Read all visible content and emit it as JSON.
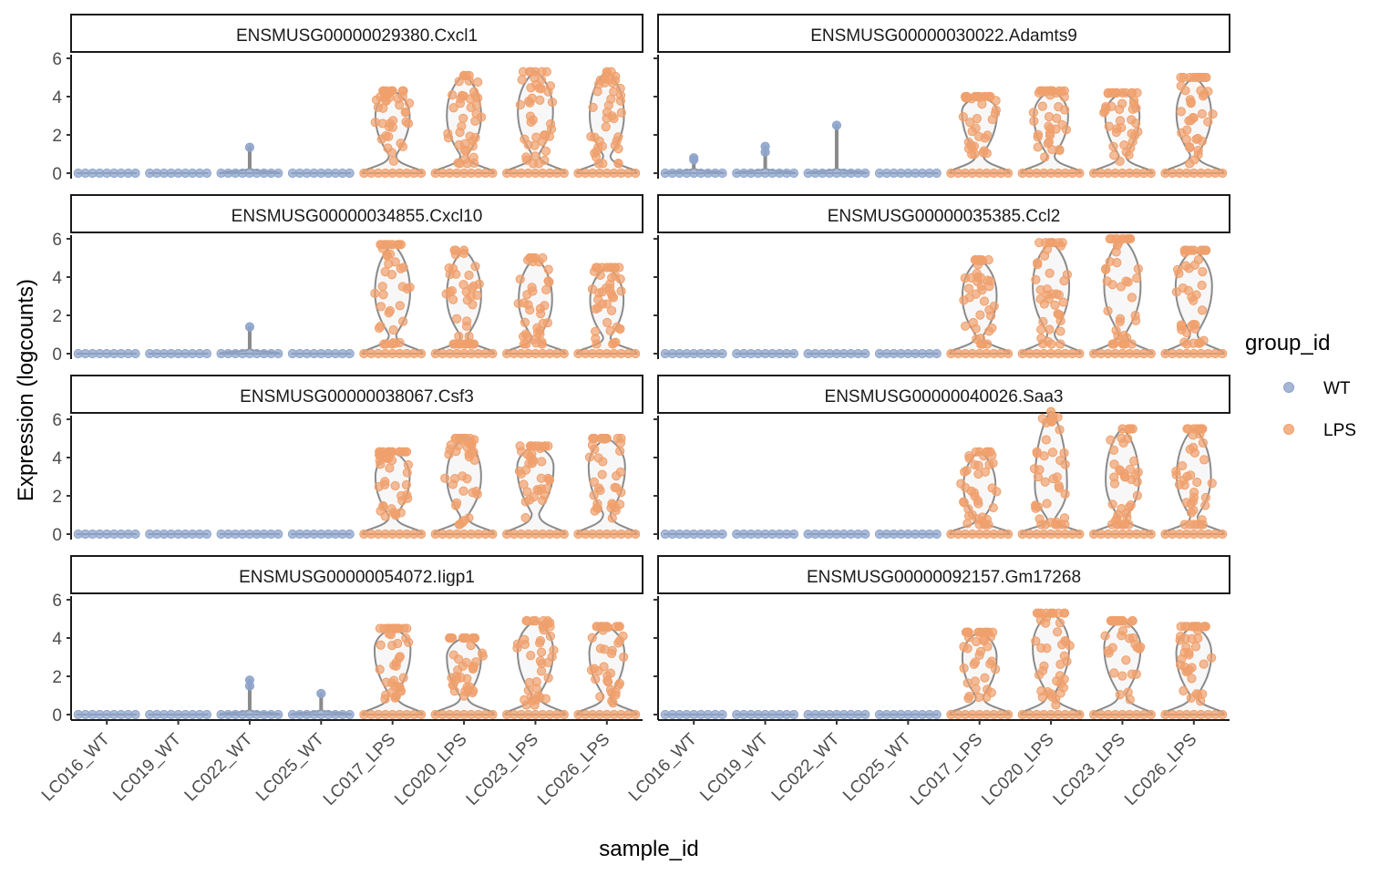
{
  "chart_data": {
    "type": "violin",
    "xlabel": "sample_id",
    "ylabel": "Expression (logcounts)",
    "ylim": [
      0,
      6
    ],
    "yticks": [
      0,
      2,
      4,
      6
    ],
    "categories": [
      "LC016_WT",
      "LC019_WT",
      "LC022_WT",
      "LC025_WT",
      "LC017_LPS",
      "LC020_LPS",
      "LC023_LPS",
      "LC026_LPS"
    ],
    "category_group": [
      "WT",
      "WT",
      "WT",
      "WT",
      "LPS",
      "LPS",
      "LPS",
      "LPS"
    ],
    "legend": {
      "title": "group_id",
      "position": "right",
      "entries": [
        {
          "label": "WT",
          "color": "#8ea4cc"
        },
        {
          "label": "LPS",
          "color": "#f0a06c"
        }
      ]
    },
    "violin_outline_color": "#8a8a8a",
    "panels": [
      {
        "gene": "ENSMUSG00000029380.Cxcl1",
        "max_expression": [
          0,
          0,
          1.35,
          0,
          4.3,
          5.1,
          5.3,
          5.3
        ],
        "expressed_center": [
          0,
          0,
          1.35,
          0,
          3.0,
          3.0,
          3.2,
          3.0
        ]
      },
      {
        "gene": "ENSMUSG00000030022.Adamts9",
        "max_expression": [
          0.8,
          1.4,
          2.5,
          0,
          4.0,
          4.3,
          4.2,
          5.0
        ],
        "expressed_center": [
          0.7,
          1.1,
          2.5,
          0,
          3.2,
          3.0,
          3.0,
          3.1
        ]
      },
      {
        "gene": "ENSMUSG00000034855.Cxcl10",
        "max_expression": [
          0,
          0,
          1.4,
          0,
          5.7,
          5.4,
          5.0,
          4.5
        ],
        "expressed_center": [
          0,
          0,
          1.4,
          0,
          3.2,
          3.0,
          2.8,
          2.8
        ]
      },
      {
        "gene": "ENSMUSG00000035385.Ccl2",
        "max_expression": [
          0,
          0,
          0,
          0,
          4.9,
          5.8,
          6.0,
          5.4
        ],
        "expressed_center": [
          0,
          0,
          0,
          0,
          3.0,
          3.5,
          3.5,
          3.5
        ]
      },
      {
        "gene": "ENSMUSG00000038067.Csf3",
        "max_expression": [
          0,
          0,
          0,
          0,
          4.3,
          5.0,
          4.6,
          5.0
        ],
        "expressed_center": [
          0,
          0,
          0,
          0,
          3.0,
          3.0,
          3.5,
          3.5
        ]
      },
      {
        "gene": "ENSMUSG00000040026.Saa3",
        "max_expression": [
          0,
          0,
          0,
          0,
          4.3,
          6.4,
          5.5,
          5.5
        ],
        "expressed_center": [
          0,
          0,
          0,
          0,
          2.5,
          2.5,
          2.8,
          3.0
        ]
      },
      {
        "gene": "ENSMUSG00000054072.Iigp1",
        "max_expression": [
          0,
          0,
          1.8,
          1.1,
          4.5,
          4.0,
          4.9,
          4.6
        ],
        "expressed_center": [
          0,
          0,
          1.5,
          1.1,
          3.4,
          3.0,
          3.3,
          3.2
        ]
      },
      {
        "gene": "ENSMUSG00000092157.Gm17268",
        "max_expression": [
          0,
          0,
          0,
          0,
          4.3,
          5.3,
          4.9,
          4.6
        ],
        "expressed_center": [
          0,
          0,
          0,
          0,
          3.0,
          3.5,
          3.5,
          3.2
        ]
      }
    ]
  }
}
